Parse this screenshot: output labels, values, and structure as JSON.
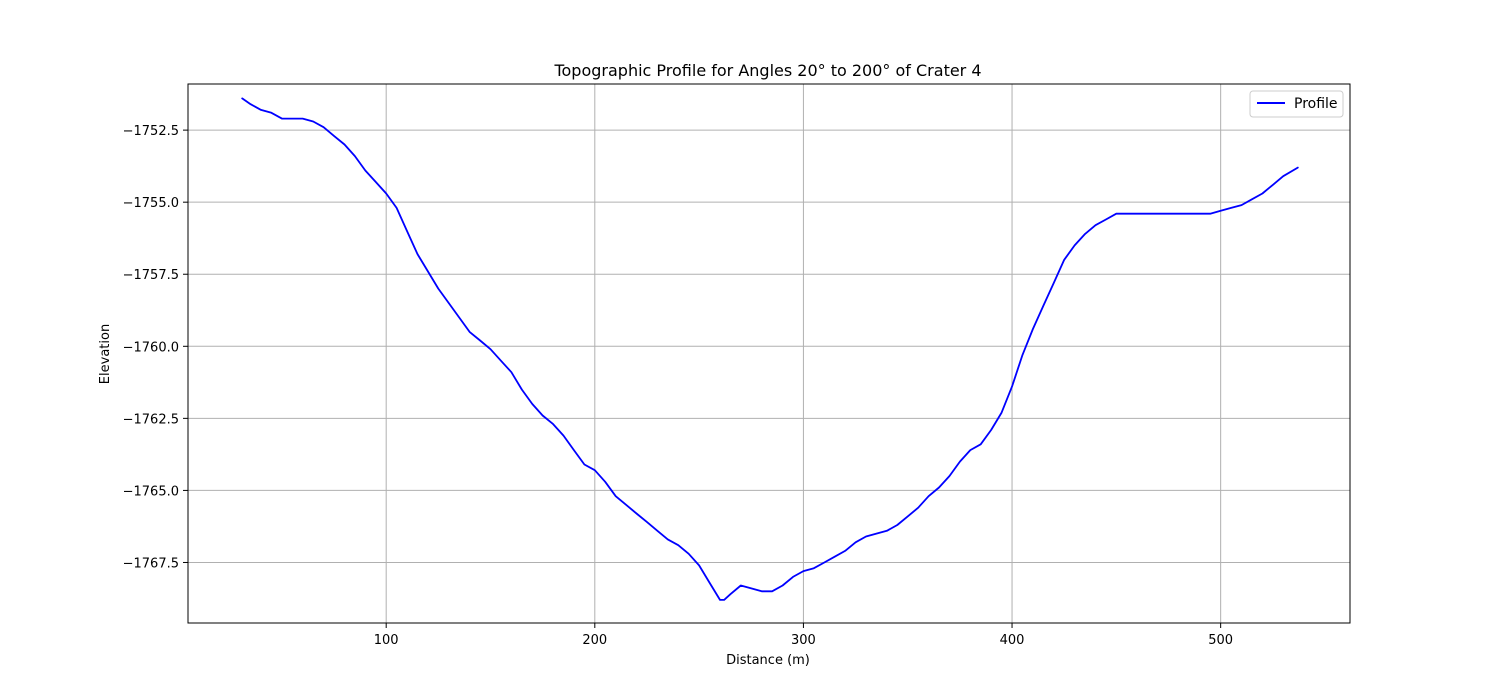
{
  "chart_data": {
    "type": "line",
    "title": "Topographic Profile for Angles 20° to 200° of Crater 4",
    "xlabel": "Distance (m)",
    "ylabel": "Elevation",
    "xlim": [
      5,
      562
    ],
    "ylim": [
      -1769.6,
      -1750.9
    ],
    "xticks": [
      100,
      200,
      300,
      400,
      500
    ],
    "yticks": [
      -1752.5,
      -1755.0,
      -1757.5,
      -1760.0,
      -1762.5,
      -1765.0,
      -1767.5
    ],
    "xtick_labels": [
      "100",
      "200",
      "300",
      "400",
      "500"
    ],
    "ytick_labels": [
      "−1752.5",
      "−1755.0",
      "−1757.5",
      "−1760.0",
      "−1762.5",
      "−1765.0",
      "−1767.5"
    ],
    "grid": true,
    "legend_position": "upper right",
    "colors": {
      "profile": "#0000ff",
      "grid": "#b0b0b0",
      "axes": "#000000"
    },
    "series": [
      {
        "name": "Profile",
        "x": [
          31,
          35,
          40,
          45,
          50,
          55,
          60,
          65,
          70,
          75,
          80,
          85,
          90,
          95,
          100,
          105,
          110,
          115,
          120,
          125,
          130,
          135,
          140,
          145,
          150,
          155,
          160,
          165,
          170,
          175,
          180,
          185,
          190,
          195,
          200,
          205,
          210,
          215,
          220,
          225,
          230,
          235,
          240,
          245,
          250,
          255,
          260,
          262,
          265,
          270,
          275,
          280,
          285,
          290,
          295,
          300,
          305,
          310,
          315,
          320,
          325,
          330,
          335,
          340,
          345,
          350,
          355,
          360,
          365,
          370,
          375,
          380,
          385,
          390,
          395,
          400,
          405,
          410,
          415,
          420,
          425,
          430,
          435,
          440,
          445,
          450,
          455,
          460,
          465,
          470,
          475,
          480,
          485,
          490,
          495,
          500,
          505,
          510,
          515,
          520,
          525,
          530,
          537
        ],
        "y": [
          -1751.4,
          -1751.6,
          -1751.8,
          -1751.9,
          -1752.1,
          -1752.1,
          -1752.1,
          -1752.2,
          -1752.4,
          -1752.7,
          -1753.0,
          -1753.4,
          -1753.9,
          -1754.3,
          -1754.7,
          -1755.2,
          -1756.0,
          -1756.8,
          -1757.4,
          -1758.0,
          -1758.5,
          -1759.0,
          -1759.5,
          -1759.8,
          -1760.1,
          -1760.5,
          -1760.9,
          -1761.5,
          -1762.0,
          -1762.4,
          -1762.7,
          -1763.1,
          -1763.6,
          -1764.1,
          -1764.3,
          -1764.7,
          -1765.2,
          -1765.5,
          -1765.8,
          -1766.1,
          -1766.4,
          -1766.7,
          -1766.9,
          -1767.2,
          -1767.6,
          -1768.2,
          -1768.8,
          -1768.8,
          -1768.6,
          -1768.3,
          -1768.4,
          -1768.5,
          -1768.5,
          -1768.3,
          -1768.0,
          -1767.8,
          -1767.7,
          -1767.5,
          -1767.3,
          -1767.1,
          -1766.8,
          -1766.6,
          -1766.5,
          -1766.4,
          -1766.2,
          -1765.9,
          -1765.6,
          -1765.2,
          -1764.9,
          -1764.5,
          -1764.0,
          -1763.6,
          -1763.4,
          -1762.9,
          -1762.3,
          -1761.4,
          -1760.3,
          -1759.4,
          -1758.6,
          -1757.8,
          -1757.0,
          -1756.5,
          -1756.1,
          -1755.8,
          -1755.6,
          -1755.4,
          -1755.4,
          -1755.4,
          -1755.4,
          -1755.4,
          -1755.4,
          -1755.4,
          -1755.4,
          -1755.4,
          -1755.4,
          -1755.3,
          -1755.2,
          -1755.1,
          -1754.9,
          -1754.7,
          -1754.4,
          -1754.1,
          -1753.8
        ]
      }
    ]
  }
}
